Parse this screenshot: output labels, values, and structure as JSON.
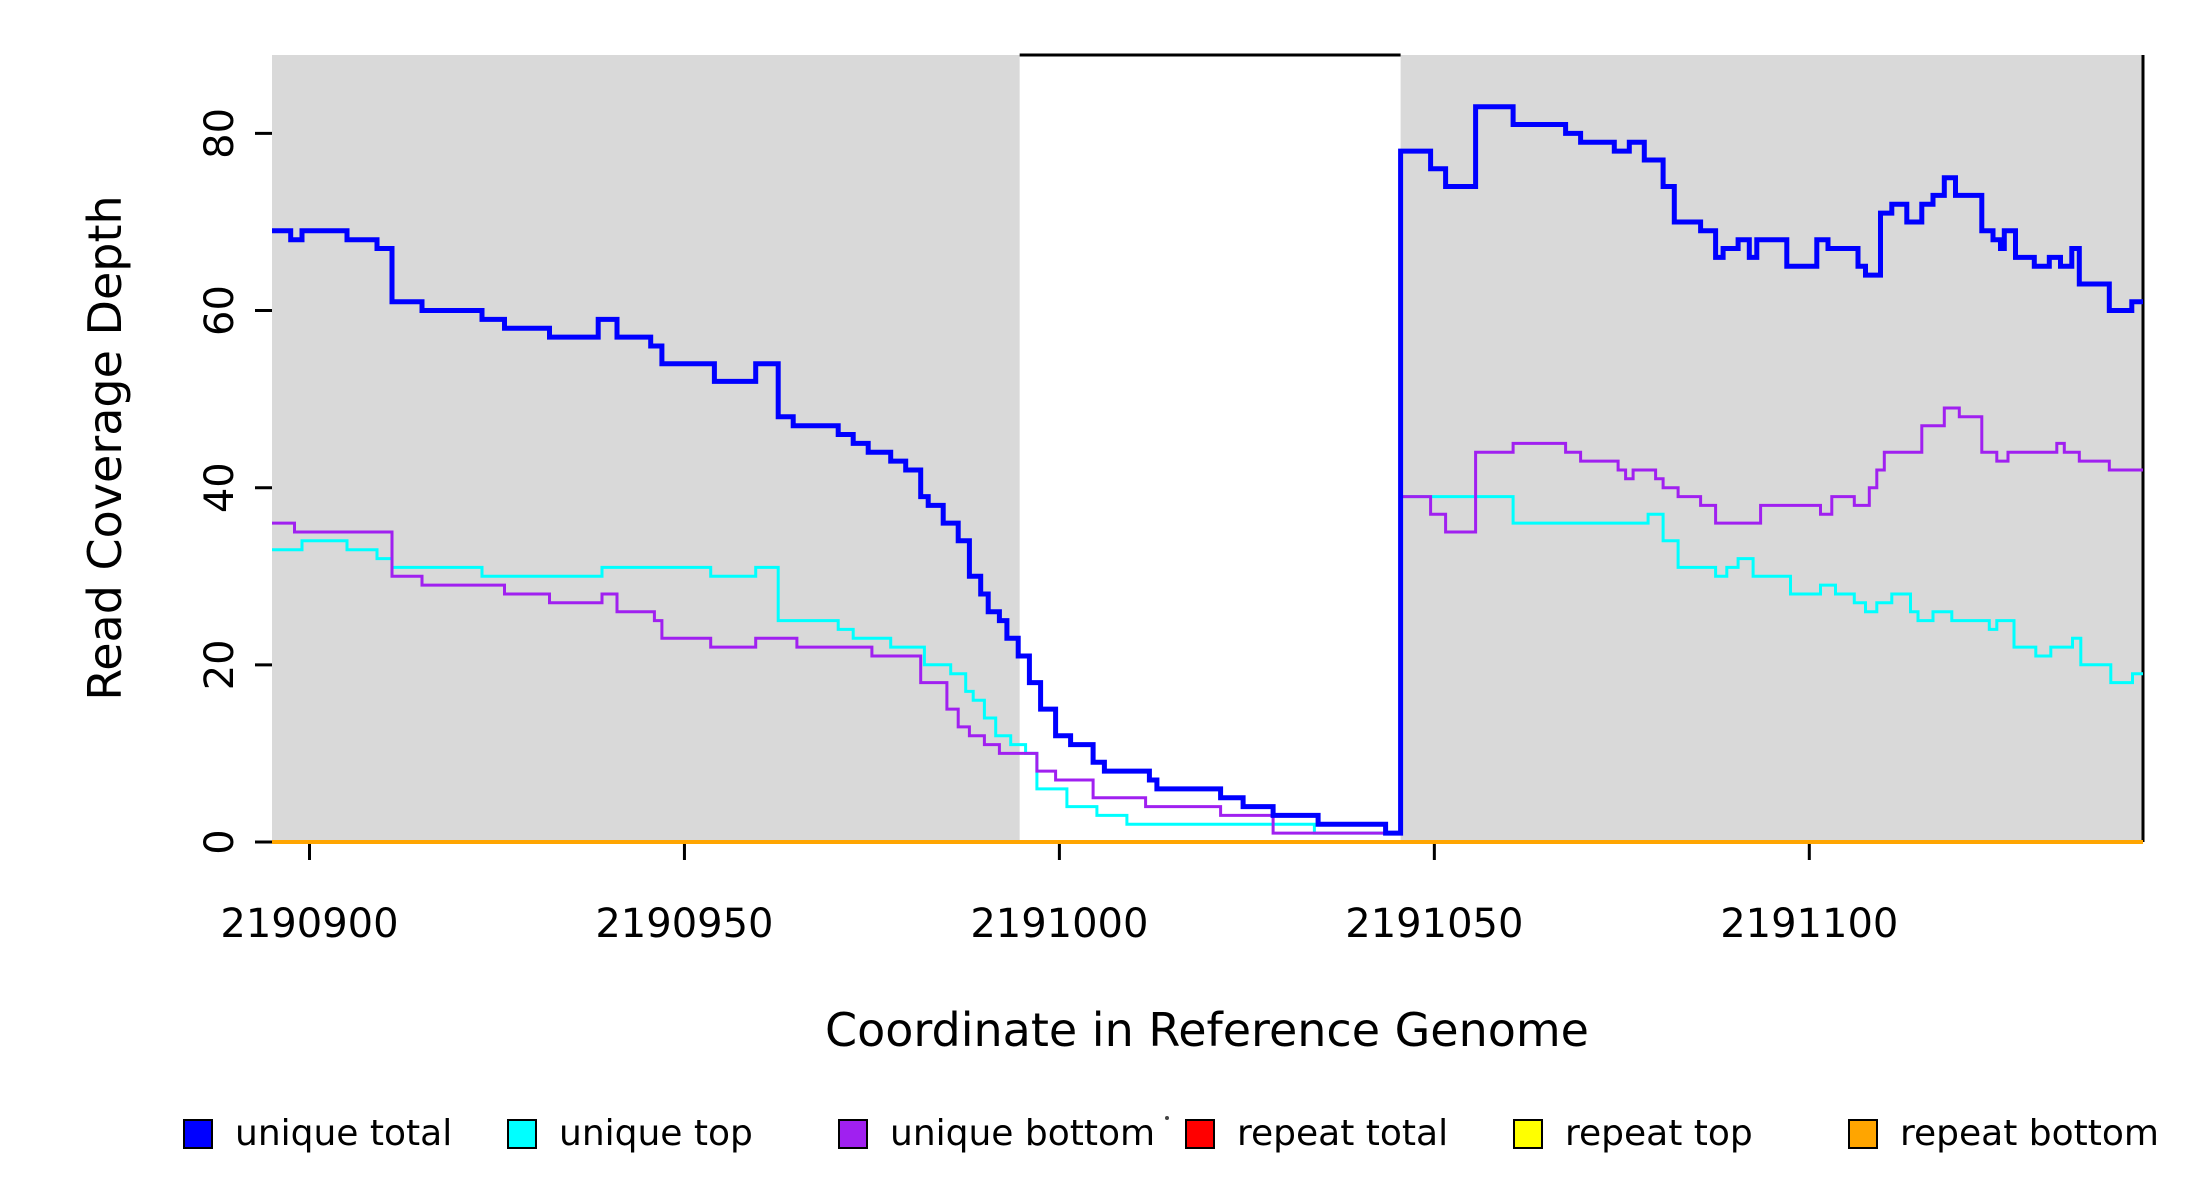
{
  "y_axis": {
    "label": "Read Coverage Depth",
    "ticks": [
      "0",
      "20",
      "40",
      "60",
      "80"
    ],
    "tick_values": [
      0,
      20,
      40,
      60,
      80
    ]
  },
  "x_axis": {
    "label": "Coordinate in Reference Genome",
    "ticks": [
      "2190900",
      "2190950",
      "2191000",
      "2191050",
      "2191100"
    ],
    "tick_values": [
      2190900,
      2190950,
      2191000,
      2191050,
      2191100
    ]
  },
  "legend": {
    "items": [
      {
        "label": "unique total",
        "color": "#0000ff"
      },
      {
        "label": "unique top",
        "color": "#00ffff"
      },
      {
        "label": "unique bottom",
        "color": "#a020f0"
      },
      {
        "label": "repeat total",
        "color": "#ff0000"
      },
      {
        "label": "repeat top",
        "color": "#ffff00"
      },
      {
        "label": "repeat bottom",
        "color": "#ffa500"
      }
    ]
  },
  "chart_data": {
    "type": "line",
    "subtype": "step",
    "title": "",
    "xlabel": "Coordinate in Reference Genome",
    "ylabel": "Read Coverage Depth",
    "xlim": [
      2190895,
      2191144.5
    ],
    "ylim": [
      0,
      88.85
    ],
    "grid": false,
    "legend_position": "bottom",
    "background_color": "#ffffff",
    "shaded_color": "#d9d9d9",
    "shaded_regions": [
      {
        "x0": 2190895,
        "x1": 2190994.7
      },
      {
        "x0": 2191045.5,
        "x1": 2191144.5
      }
    ],
    "draw_order": [
      3,
      4,
      5,
      1,
      2,
      0
    ],
    "series": [
      {
        "name": "unique total",
        "color": "#0000ff",
        "line_width": 5,
        "points": [
          [
            2190895,
            69
          ],
          [
            2190897.5,
            68
          ],
          [
            2190899,
            69
          ],
          [
            2190905,
            68
          ],
          [
            2190909,
            67
          ],
          [
            2190911,
            61
          ],
          [
            2190915,
            60
          ],
          [
            2190923,
            59
          ],
          [
            2190926,
            58
          ],
          [
            2190932,
            57
          ],
          [
            2190938.5,
            59
          ],
          [
            2190941,
            57
          ],
          [
            2190945.5,
            56
          ],
          [
            2190947,
            54
          ],
          [
            2190954,
            52
          ],
          [
            2190959.5,
            54
          ],
          [
            2190962.5,
            48
          ],
          [
            2190964.5,
            47
          ],
          [
            2190970.5,
            46
          ],
          [
            2190972.5,
            45
          ],
          [
            2190974.5,
            44
          ],
          [
            2190977.5,
            43
          ],
          [
            2190979.5,
            42
          ],
          [
            2190981.5,
            39
          ],
          [
            2190982.5,
            38
          ],
          [
            2190984.5,
            36
          ],
          [
            2190986.5,
            34
          ],
          [
            2190988,
            30
          ],
          [
            2190989.5,
            28
          ],
          [
            2190990.5,
            26
          ],
          [
            2190992,
            25
          ],
          [
            2190993,
            23
          ],
          [
            2190994.5,
            21
          ],
          [
            2190996,
            18
          ],
          [
            2190997.5,
            15
          ],
          [
            2190999.5,
            12
          ],
          [
            2191001.5,
            11
          ],
          [
            2191004.5,
            9
          ],
          [
            2191006,
            8
          ],
          [
            2191012,
            7
          ],
          [
            2191013,
            6
          ],
          [
            2191021.5,
            5
          ],
          [
            2191024.5,
            4
          ],
          [
            2191028.5,
            3
          ],
          [
            2191034.5,
            2
          ],
          [
            2191043.5,
            1
          ],
          [
            2191045.5,
            78
          ],
          [
            2191049.5,
            76
          ],
          [
            2191051.5,
            74
          ],
          [
            2191055.5,
            83
          ],
          [
            2191060.5,
            81
          ],
          [
            2191067.5,
            80
          ],
          [
            2191069.5,
            79
          ],
          [
            2191074,
            78
          ],
          [
            2191076,
            79
          ],
          [
            2191078,
            77
          ],
          [
            2191080.5,
            74
          ],
          [
            2191082,
            70
          ],
          [
            2191085.5,
            69
          ],
          [
            2191087.5,
            66
          ],
          [
            2191088.5,
            67
          ],
          [
            2191090.5,
            68
          ],
          [
            2191092,
            66
          ],
          [
            2191093,
            68
          ],
          [
            2191097,
            65
          ],
          [
            2191101,
            68
          ],
          [
            2191102.5,
            67
          ],
          [
            2191106.5,
            65
          ],
          [
            2191107.5,
            64
          ],
          [
            2191109.5,
            71
          ],
          [
            2191111,
            72
          ],
          [
            2191113,
            70
          ],
          [
            2191115,
            72
          ],
          [
            2191116.5,
            73
          ],
          [
            2191118,
            75
          ],
          [
            2191119.5,
            73
          ],
          [
            2191123,
            69
          ],
          [
            2191124.5,
            68
          ],
          [
            2191125.5,
            67
          ],
          [
            2191126,
            69
          ],
          [
            2191127.5,
            66
          ],
          [
            2191130,
            65
          ],
          [
            2191132,
            66
          ],
          [
            2191133.5,
            65
          ],
          [
            2191135,
            67
          ],
          [
            2191136,
            63
          ],
          [
            2191140,
            60
          ],
          [
            2191143,
            61
          ]
        ]
      },
      {
        "name": "unique top",
        "color": "#00ffff",
        "line_width": 3,
        "points": [
          [
            2190895,
            33
          ],
          [
            2190899,
            34
          ],
          [
            2190905,
            33
          ],
          [
            2190909,
            32
          ],
          [
            2190911,
            31
          ],
          [
            2190923,
            30
          ],
          [
            2190939,
            31
          ],
          [
            2190953.5,
            30
          ],
          [
            2190959.5,
            31
          ],
          [
            2190962.5,
            25
          ],
          [
            2190970.5,
            24
          ],
          [
            2190972.5,
            23
          ],
          [
            2190977.5,
            22
          ],
          [
            2190982,
            20
          ],
          [
            2190985.5,
            19
          ],
          [
            2190987.5,
            17
          ],
          [
            2190988.5,
            16
          ],
          [
            2190990,
            14
          ],
          [
            2190991.5,
            12
          ],
          [
            2190993.5,
            11
          ],
          [
            2190995.5,
            10
          ],
          [
            2190997,
            6
          ],
          [
            2191001,
            4
          ],
          [
            2191005,
            3
          ],
          [
            2191009,
            2
          ],
          [
            2191034,
            1
          ],
          [
            2191045.5,
            39
          ],
          [
            2191060.5,
            36
          ],
          [
            2191078.5,
            37
          ],
          [
            2191080.5,
            34
          ],
          [
            2191082.5,
            31
          ],
          [
            2191087.5,
            30
          ],
          [
            2191089,
            31
          ],
          [
            2191090.5,
            32
          ],
          [
            2191092.5,
            30
          ],
          [
            2191097.5,
            28
          ],
          [
            2191101.5,
            29
          ],
          [
            2191103.5,
            28
          ],
          [
            2191106,
            27
          ],
          [
            2191107.5,
            26
          ],
          [
            2191109,
            27
          ],
          [
            2191111,
            28
          ],
          [
            2191113.5,
            26
          ],
          [
            2191114.5,
            25
          ],
          [
            2191116.5,
            26
          ],
          [
            2191119,
            25
          ],
          [
            2191124,
            24
          ],
          [
            2191125,
            25
          ],
          [
            2191127.3,
            22
          ],
          [
            2191130.2,
            21
          ],
          [
            2191132.2,
            22
          ],
          [
            2191135.1,
            23
          ],
          [
            2191136.2,
            20
          ],
          [
            2191140.2,
            18
          ],
          [
            2191143.1,
            19
          ]
        ]
      },
      {
        "name": "unique bottom",
        "color": "#a020f0",
        "line_width": 3,
        "points": [
          [
            2190895,
            36
          ],
          [
            2190898,
            35
          ],
          [
            2190911,
            30
          ],
          [
            2190915,
            29
          ],
          [
            2190926,
            28
          ],
          [
            2190932,
            27
          ],
          [
            2190939,
            28
          ],
          [
            2190941,
            26
          ],
          [
            2190946,
            25
          ],
          [
            2190947,
            23
          ],
          [
            2190953.5,
            22
          ],
          [
            2190959.5,
            23
          ],
          [
            2190965,
            22
          ],
          [
            2190975,
            21
          ],
          [
            2190981.5,
            18
          ],
          [
            2190985,
            15
          ],
          [
            2190986.5,
            13
          ],
          [
            2190988,
            12
          ],
          [
            2190990,
            11
          ],
          [
            2190992,
            10
          ],
          [
            2190997,
            8
          ],
          [
            2190999.5,
            7
          ],
          [
            2191004.5,
            5
          ],
          [
            2191011.5,
            4
          ],
          [
            2191021.5,
            3
          ],
          [
            2191028.5,
            1
          ],
          [
            2191045.5,
            39
          ],
          [
            2191049.5,
            37
          ],
          [
            2191051.5,
            35
          ],
          [
            2191055.5,
            44
          ],
          [
            2191060.5,
            45
          ],
          [
            2191067.5,
            44
          ],
          [
            2191069.5,
            43
          ],
          [
            2191074.5,
            42
          ],
          [
            2191075.5,
            41
          ],
          [
            2191076.5,
            42
          ],
          [
            2191079.5,
            41
          ],
          [
            2191080.5,
            40
          ],
          [
            2191082.5,
            39
          ],
          [
            2191085.5,
            38
          ],
          [
            2191087.5,
            36
          ],
          [
            2191093.5,
            38
          ],
          [
            2191101.5,
            37
          ],
          [
            2191103,
            39
          ],
          [
            2191106,
            38
          ],
          [
            2191108,
            40
          ],
          [
            2191109,
            42
          ],
          [
            2191110,
            44
          ],
          [
            2191115,
            47
          ],
          [
            2191118,
            49
          ],
          [
            2191120,
            48
          ],
          [
            2191123,
            44
          ],
          [
            2191125,
            43
          ],
          [
            2191126.5,
            44
          ],
          [
            2191133,
            45
          ],
          [
            2191134,
            44
          ],
          [
            2191136,
            43
          ],
          [
            2191140,
            42
          ]
        ]
      },
      {
        "name": "repeat total",
        "color": "#ff0000",
        "line_width": 3,
        "points": [
          [
            2190895,
            0
          ]
        ]
      },
      {
        "name": "repeat top",
        "color": "#ffff00",
        "line_width": 3,
        "points": [
          [
            2190895,
            0
          ]
        ]
      },
      {
        "name": "repeat bottom",
        "color": "#ffa500",
        "line_width": 4,
        "points": [
          [
            2190895,
            0
          ]
        ]
      }
    ]
  }
}
